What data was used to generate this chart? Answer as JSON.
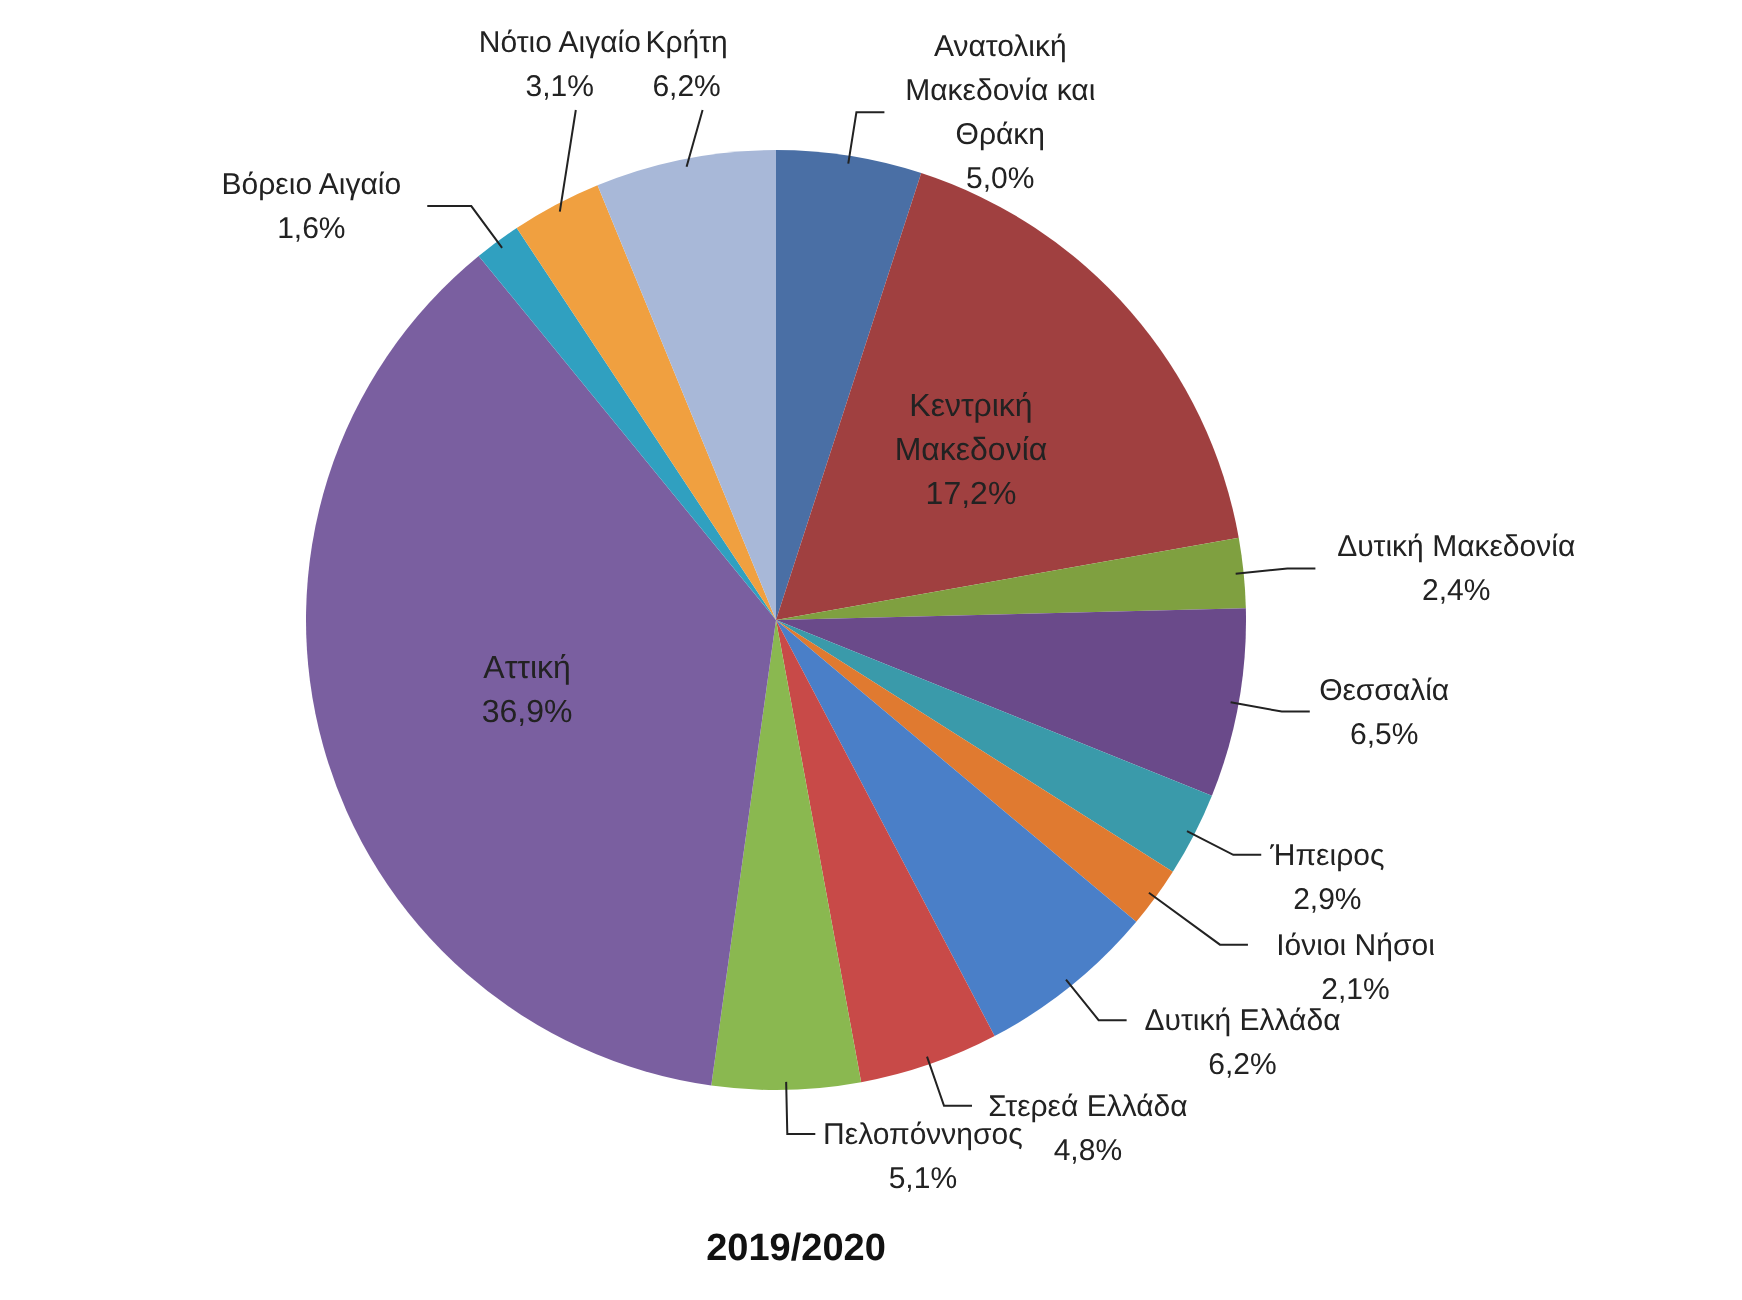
{
  "chart_data": {
    "type": "pie",
    "title": "2019/2020",
    "categories": [
      "Ανατολική Μακεδονία και Θράκη",
      "Κεντρική Μακεδονία",
      "Δυτική Μακεδονία",
      "Θεσσαλία",
      "Ήπειρος",
      "Ιόνιοι Νήσοι",
      "Δυτική Ελλάδα",
      "Στερεά Ελλάδα",
      "Πελοπόννησος",
      "Αττική",
      "Βόρειο Αιγαίο",
      "Νότιο Αιγαίο",
      "Κρήτη"
    ],
    "values": [
      5.0,
      17.2,
      2.4,
      6.5,
      2.9,
      2.1,
      6.2,
      4.8,
      5.1,
      36.9,
      1.6,
      3.1,
      6.2
    ],
    "colors": [
      "#4a6fa5",
      "#a04040",
      "#7fa040",
      "#6a4a8a",
      "#3a9aaa",
      "#e07a30",
      "#4a7fc8",
      "#c84a48",
      "#8ab850",
      "#7a5fa0",
      "#30a0c0",
      "#f0a040",
      "#a8b8d8"
    ],
    "value_labels": [
      "5,0%",
      "17,2%",
      "2,4%",
      "6,5%",
      "2,9%",
      "2,1%",
      "6,2%",
      "4,8%",
      "5,1%",
      "36,9%",
      "1,6%",
      "3,1%",
      "6,2%"
    ],
    "legend": false
  }
}
